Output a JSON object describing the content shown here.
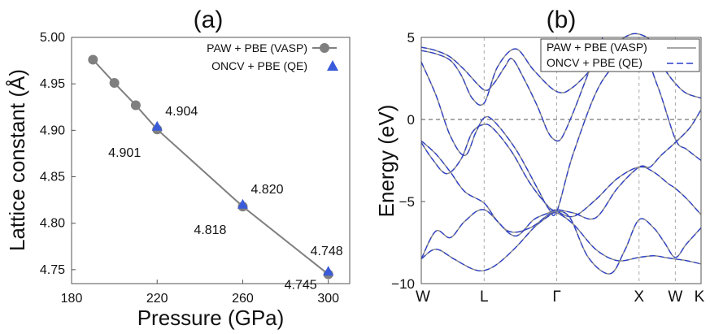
{
  "chart_data": [
    {
      "type": "scatter",
      "panel": "(a)",
      "xlabel": "Pressure (GPa)",
      "ylabel": "Lattice constant (Å)",
      "xlim": [
        180,
        310
      ],
      "ylim": [
        4.735,
        5.0
      ],
      "xticks": [
        180,
        220,
        260,
        300
      ],
      "yticks": [
        4.75,
        4.8,
        4.85,
        4.9,
        4.95,
        5.0
      ],
      "xtick_labels": [
        "180",
        "220",
        "260",
        "300"
      ],
      "ytick_labels": [
        "4.75",
        "4.80",
        "4.85",
        "4.90",
        "4.95",
        "5.00"
      ],
      "series": [
        {
          "name": "PAW  + PBE (VASP)",
          "marker": "circle",
          "line": true,
          "color": "#7f7f7f",
          "x": [
            190,
            200,
            210,
            220,
            260,
            300
          ],
          "y": [
            4.976,
            4.951,
            4.927,
            4.901,
            4.818,
            4.745
          ]
        },
        {
          "name": "ONCV + PBE   (QE)",
          "marker": "triangle",
          "line": false,
          "color": "#3a5bd9",
          "x": [
            220,
            260,
            300
          ],
          "y": [
            4.904,
            4.82,
            4.748
          ]
        }
      ],
      "annotations": [
        {
          "text": "4.904",
          "x": 220,
          "y": 4.904,
          "pos": "above-right"
        },
        {
          "text": "4.901",
          "x": 220,
          "y": 4.901,
          "pos": "below-left"
        },
        {
          "text": "4.820",
          "x": 260,
          "y": 4.82,
          "pos": "above-right"
        },
        {
          "text": "4.818",
          "x": 260,
          "y": 4.818,
          "pos": "below-left"
        },
        {
          "text": "4.748",
          "x": 300,
          "y": 4.748,
          "pos": "above"
        },
        {
          "text": "4.745",
          "x": 300,
          "y": 4.745,
          "pos": "left"
        }
      ],
      "legend": "top-right"
    },
    {
      "type": "line",
      "panel": "(b)",
      "ylabel": "Energy (eV)",
      "ylim": [
        -10,
        5
      ],
      "yticks": [
        5,
        0,
        -5,
        -10
      ],
      "ytick_labels": [
        "5",
        "0",
        "−5",
        "−10"
      ],
      "kpoints": [
        {
          "label": "W",
          "k": 0
        },
        {
          "label": "L",
          "k": 0.866
        },
        {
          "label": "Γ",
          "k": 1.866
        },
        {
          "label": "X",
          "k": 3.0
        },
        {
          "label": "W",
          "k": 3.5
        },
        {
          "label": "K",
          "k": 3.854
        }
      ],
      "fermi_level": 0,
      "legend": "top-right",
      "series": [
        {
          "name": "PAW  + PBE (VASP)",
          "style": "solid",
          "color": "#888888"
        },
        {
          "name": "ONCV + PBE   (QE)",
          "style": "dashed",
          "color": "#2b3fcc"
        }
      ],
      "bands": [
        {
          "k": [
            0,
            0.2,
            0.45,
            0.7,
            0.866,
            1.05,
            1.3,
            1.55,
            1.75,
            1.866,
            2.1,
            2.4,
            2.7,
            3.0,
            3.2,
            3.35,
            3.5,
            3.65,
            3.854
          ],
          "e": [
            -8.5,
            -7.9,
            -8.5,
            -9.1,
            -9.2,
            -8.8,
            -7.8,
            -6.6,
            -5.9,
            -5.7,
            -6.4,
            -7.9,
            -8.6,
            -8.4,
            -8.3,
            -8.4,
            -8.5,
            -8.6,
            -8.8
          ]
        },
        {
          "k": [
            0,
            0.2,
            0.4,
            0.6,
            0.866,
            1.2,
            1.5,
            1.75,
            1.866,
            2.05,
            2.3,
            2.6,
            2.8,
            3.0,
            3.2,
            3.35,
            3.5,
            3.65,
            3.854
          ],
          "e": [
            -8.5,
            -6.8,
            -7.2,
            -6.2,
            -5.5,
            -6.8,
            -6.6,
            -5.8,
            -5.6,
            -6.0,
            -8.4,
            -9.4,
            -8.0,
            -6.1,
            -6.6,
            -7.5,
            -8.4,
            -7.6,
            -6.6
          ]
        },
        {
          "k": [
            0,
            0.15,
            0.35,
            0.55,
            0.7,
            0.866,
            1.0,
            1.25,
            1.5,
            1.75,
            1.866,
            2.1,
            2.4,
            2.7,
            3.0,
            3.2,
            3.4,
            3.5,
            3.65,
            3.854
          ],
          "e": [
            -1.4,
            -2.4,
            -3.3,
            -2.4,
            -0.8,
            -0.3,
            -0.6,
            -2.0,
            -3.9,
            -5.3,
            -5.6,
            -5.9,
            -4.9,
            -3.6,
            -2.9,
            -3.2,
            -3.9,
            -4.2,
            -4.8,
            -5.8
          ]
        },
        {
          "k": [
            0,
            0.2,
            0.4,
            0.6,
            0.866,
            1.05,
            1.3,
            1.55,
            1.75,
            1.866,
            2.1,
            2.4,
            2.7,
            3.0,
            3.15,
            3.3,
            3.5,
            3.7,
            3.854
          ],
          "e": [
            -1.3,
            -2.1,
            -3.2,
            -4.4,
            -5.1,
            -6.2,
            -7.1,
            -6.1,
            -5.7,
            -5.5,
            -5.7,
            -6.0,
            -4.2,
            -2.9,
            -2.9,
            -2.2,
            -1.4,
            -0.5,
            0.6
          ]
        },
        {
          "k": [
            0,
            0.2,
            0.4,
            0.6,
            0.75,
            0.866,
            1.0,
            1.3,
            1.6,
            1.75,
            1.866,
            2.1,
            2.5,
            3.0,
            3.25,
            3.5,
            3.65,
            3.854
          ],
          "e": [
            3.5,
            1.5,
            -1.0,
            -2.2,
            -0.8,
            0.1,
            -0.1,
            -1.8,
            -4.2,
            -5.4,
            -5.6,
            -2.0,
            2.4,
            4.2,
            2.1,
            -1.2,
            -1.8,
            -2.5
          ]
        },
        {
          "k": [
            0,
            0.2,
            0.4,
            0.55,
            0.7,
            0.866,
            1.05,
            1.3,
            1.55,
            1.866,
            2.1,
            2.5,
            2.8,
            3.0,
            3.2,
            3.35,
            3.5,
            3.65,
            3.854
          ],
          "e": [
            4.2,
            4.0,
            3.6,
            2.7,
            1.3,
            1.0,
            3.2,
            4.3,
            3.0,
            1.7,
            2.0,
            3.8,
            5.0,
            5.2,
            4.6,
            3.1,
            2.2,
            1.6,
            1.3
          ]
        },
        {
          "k": [
            0,
            0.2,
            0.4,
            0.6,
            0.866,
            1.0,
            1.15,
            1.25,
            1.4,
            1.6,
            1.75,
            1.866,
            1.95,
            2.1,
            2.3,
            2.5
          ],
          "e": [
            4.4,
            4.2,
            3.8,
            3.0,
            1.8,
            2.2,
            3.2,
            3.7,
            2.6,
            0.8,
            -0.8,
            -1.3,
            -1.0,
            0.5,
            2.8,
            5.0
          ]
        }
      ]
    }
  ]
}
